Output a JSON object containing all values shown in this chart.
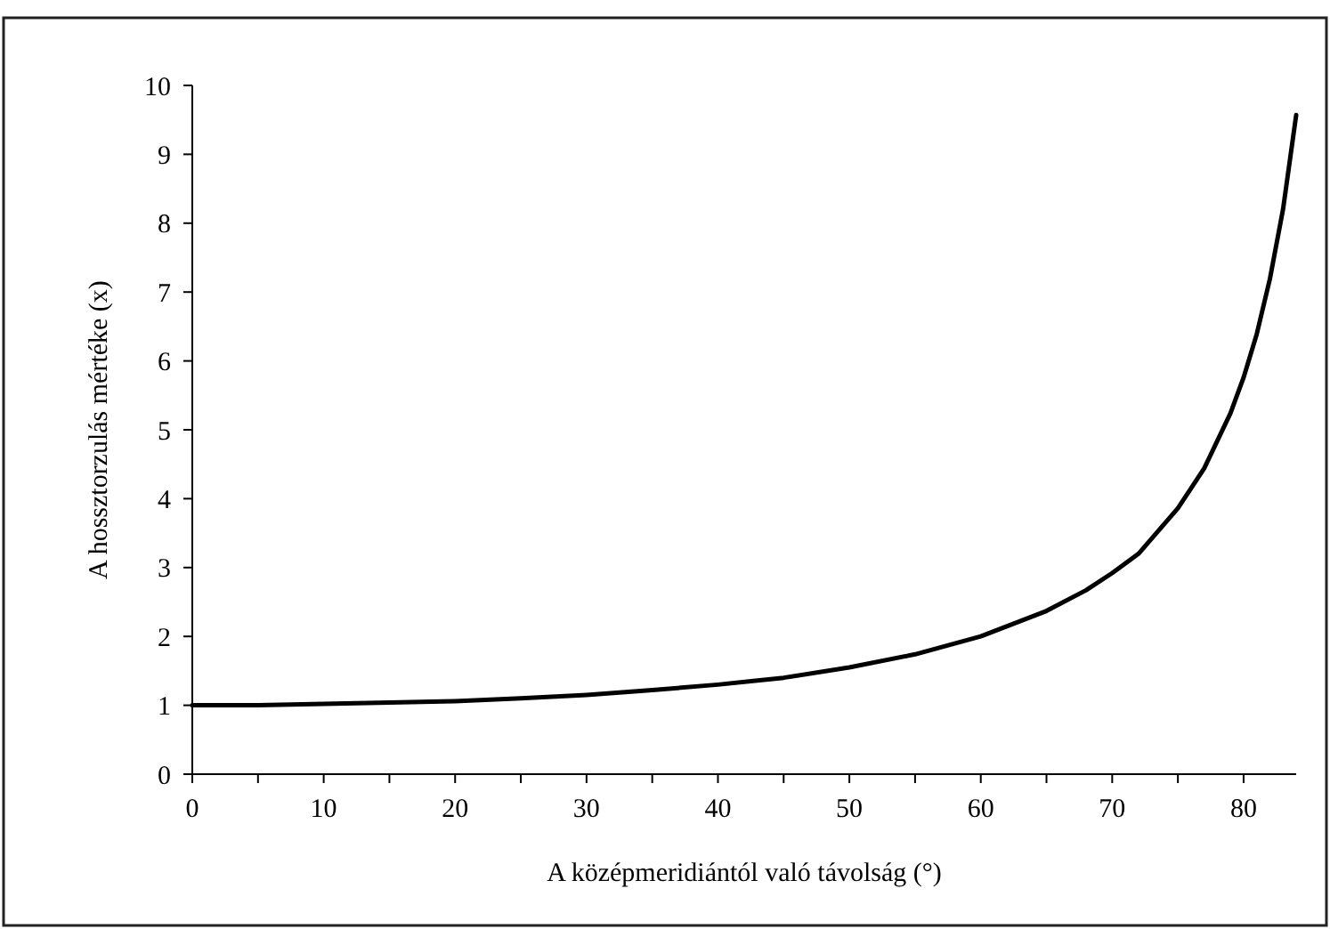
{
  "chart_data": {
    "type": "line",
    "xlabel": "A középmeridiántól való távolság (°)",
    "ylabel": "A hossztorzulás mértéke (x)",
    "x": [
      0,
      5,
      10,
      15,
      20,
      25,
      30,
      35,
      40,
      45,
      50,
      55,
      60,
      65,
      68,
      70,
      72,
      75,
      77,
      79,
      80,
      81,
      82,
      83,
      84
    ],
    "series": [
      {
        "color": "#000000",
        "values": [
          1,
          1.0,
          1.02,
          1.04,
          1.06,
          1.1,
          1.15,
          1.22,
          1.3,
          1.4,
          1.55,
          1.74,
          2.0,
          2.37,
          2.67,
          2.92,
          3.2,
          3.86,
          4.44,
          5.24,
          5.76,
          6.39,
          7.19,
          8.2,
          9.57
        ]
      }
    ],
    "xlim": [
      0,
      84
    ],
    "xticks": [
      0,
      {
        "value": 5,
        "label": null
      },
      10,
      {
        "value": 15,
        "label": null
      },
      20,
      {
        "value": 25,
        "label": null
      },
      30,
      {
        "value": 35,
        "label": null
      },
      40,
      {
        "value": 45,
        "label": null
      },
      50,
      {
        "value": 55,
        "label": null
      },
      60,
      {
        "value": 65,
        "label": null
      },
      70,
      {
        "value": 75,
        "label": null
      },
      80
    ],
    "ylim": [
      0,
      10
    ],
    "yticks": [
      0,
      1,
      2,
      3,
      4,
      5,
      6,
      7,
      8,
      9,
      10
    ],
    "grid": false,
    "marker": "none",
    "line_style": "solid"
  }
}
